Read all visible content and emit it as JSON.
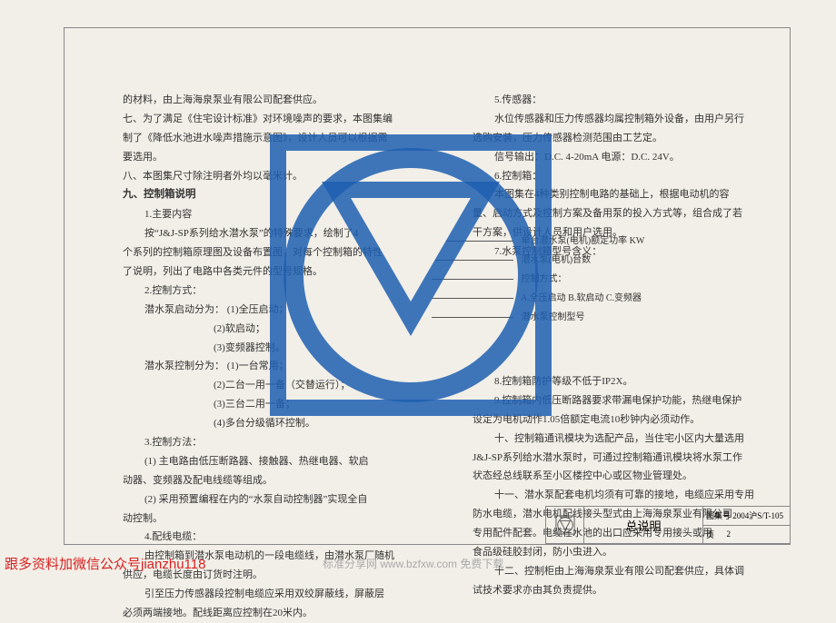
{
  "watermark": {
    "color": "#1f5fb0"
  },
  "left_column": [
    {
      "cls": "line",
      "t": "的材料，由上海海泉泵业有限公司配套供应。"
    },
    {
      "cls": "line",
      "t": "七、为了满足《住宅设计标准》对环境噪声的要求，本图集编"
    },
    {
      "cls": "line",
      "t": "制了《降低水池进水噪声措施示意图》，设计人员可以根据需"
    },
    {
      "cls": "line",
      "t": "要选用。"
    },
    {
      "cls": "line",
      "t": "八、本图集尺寸除注明者外均以毫米计。"
    },
    {
      "cls": "line bold",
      "t": "九、控制箱说明"
    },
    {
      "cls": "line indent1",
      "t": "1.主要内容"
    },
    {
      "cls": "line indent1",
      "t": "按“J&J-SP系列给水潜水泵”的特殊要求，绘制了4"
    },
    {
      "cls": "line",
      "t": "个系列的控制箱原理图及设备布置图，对每个控制箱的特性作"
    },
    {
      "cls": "line",
      "t": "了说明，列出了电路中各类元件的型号规格。"
    },
    {
      "cls": "line indent1",
      "t": "2.控制方式："
    },
    {
      "cls": "line indent1",
      "t": "潜水泵启动分为： (1)全压启动；"
    },
    {
      "cls": "line indent3",
      "t": "(2)软启动；"
    },
    {
      "cls": "line indent3",
      "t": "(3)变频器控制。"
    },
    {
      "cls": "line indent1",
      "t": "潜水泵控制分为： (1)一台常用；"
    },
    {
      "cls": "line indent3",
      "t": "(2)二台一用一备（交替运行）；"
    },
    {
      "cls": "line indent3",
      "t": "(3)三台二用一备；"
    },
    {
      "cls": "line indent3",
      "t": "(4)多台分级循环控制。"
    },
    {
      "cls": "line indent1",
      "t": "3.控制方法："
    },
    {
      "cls": "line indent1",
      "t": "(1) 主电路由低压断路器、接触器、热继电器、软启"
    },
    {
      "cls": "line",
      "t": "动器、变频器及配电线缆等组成。"
    },
    {
      "cls": "line indent1",
      "t": "(2) 采用预置编程在内的“水泵自动控制器”实现全自"
    },
    {
      "cls": "line",
      "t": "动控制。"
    },
    {
      "cls": "line indent1",
      "t": "4.配线电缆："
    },
    {
      "cls": "line indent1",
      "t": "由控制箱到潜水泵电动机的一段电缆线，由潜水泵厂随机"
    },
    {
      "cls": "line",
      "t": "供应，电缆长度由订货时注明。"
    },
    {
      "cls": "line indent1",
      "t": "引至压力传感器段控制电缆应采用双绞屏蔽线，屏蔽层"
    },
    {
      "cls": "line",
      "t": "必须两端接地。配线距离应控制在20米内。"
    }
  ],
  "right_column": [
    {
      "cls": "line indent1",
      "t": "5.传感器："
    },
    {
      "cls": "line indent1",
      "t": "水位传感器和压力传感器均属控制箱外设备，由用户另行"
    },
    {
      "cls": "line",
      "t": "选购安装，压力传感器检测范围由工艺定。"
    },
    {
      "cls": "line indent1",
      "t": "信号输出：D.C.  4-20mA  电源：D.C. 24V。"
    },
    {
      "cls": "line indent1",
      "t": "6.控制箱："
    },
    {
      "cls": "line indent1",
      "t": "本图集在4种类别控制电路的基础上，根据电动机的容"
    },
    {
      "cls": "line",
      "t": "量、启动方式及控制方案及备用泵的投入方式等，组合成了若"
    },
    {
      "cls": "line",
      "t": "干方案，供设计人员和用户选用。"
    },
    {
      "cls": "line indent1",
      "t": "7.水泵控制箱型号含义："
    }
  ],
  "legend": [
    "单台潜水泵(电机)额定功率 KW",
    "潜水泵(电机)台数",
    "控制方式：",
    "A.全压启动 B.软启动 C.变频器",
    "潜水泵控制型号"
  ],
  "right_column_lower": [
    {
      "cls": "line indent1",
      "t": "8.控制箱防护等级不低于IP2X。"
    },
    {
      "cls": "line indent1",
      "t": "9.控制箱内低压断路器要求带漏电保护功能，热继电保护"
    },
    {
      "cls": "line",
      "t": "设定为电机动作1.05倍额定电流10秒钟内必须动作。"
    },
    {
      "cls": "line indent1",
      "t": "十、控制箱通讯模块为选配产品，当住宅小区内大量选用"
    },
    {
      "cls": "line",
      "t": "J&J-SP系列给水潜水泵时，可通过控制箱通讯模块将水泵工作"
    },
    {
      "cls": "line",
      "t": "状态经总线联系至小区楼控中心或区物业管理处。"
    },
    {
      "cls": "line indent1",
      "t": "十一、潜水泵配套电机均须有可靠的接地，电缆应采用专用"
    },
    {
      "cls": "line",
      "t": "防水电缆，潜水电机配线接头型式由上海海泉泵业有限公司"
    },
    {
      "cls": "line",
      "t": "专用配件配套。电缆在水池的出口应采用专用接头或用"
    },
    {
      "cls": "line",
      "t": "食品级硅胶封闭，防小虫进入。"
    },
    {
      "cls": "line indent1",
      "t": "十二、控制柜由上海海泉泵业有限公司配套供应，具体调"
    },
    {
      "cls": "line",
      "t": "试技术要求亦由其负责提供。"
    }
  ],
  "title_block": {
    "title": "总说明",
    "code_label": "图集号",
    "code": "2004沪S/T-105",
    "page_label": "页",
    "page": "2"
  },
  "footer": {
    "red": "跟多资料加微信公众号jianzhu118",
    "gray": "标准分享网 www.bzfxw.com 免费下载"
  }
}
